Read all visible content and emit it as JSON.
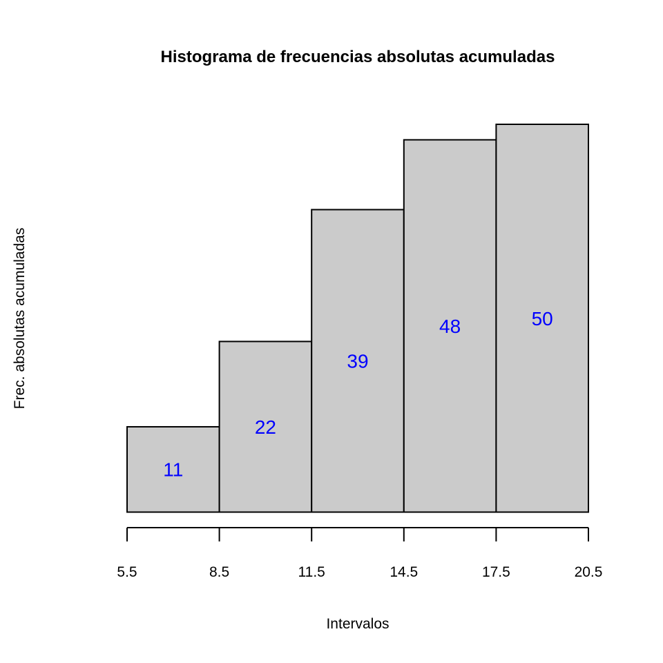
{
  "chart_data": {
    "type": "bar",
    "title": "Histograma de frecuencias absolutas acumuladas",
    "xlabel": "Intervalos",
    "ylabel": "Frec. absolutas acumuladas",
    "breaks": [
      5.5,
      8.5,
      11.5,
      14.5,
      17.5,
      20.5
    ],
    "tick_labels": [
      "5.5",
      "8.5",
      "11.5",
      "14.5",
      "17.5",
      "20.5"
    ],
    "categories": [
      "5.5-8.5",
      "8.5-11.5",
      "11.5-14.5",
      "14.5-17.5",
      "17.5-20.5"
    ],
    "values": [
      11,
      22,
      39,
      48,
      50
    ],
    "data_labels": [
      "11",
      "22",
      "39",
      "48",
      "50"
    ],
    "xlim": [
      5.5,
      20.5
    ],
    "ylim": [
      0,
      50
    ],
    "grid": false,
    "legend": "none",
    "bar_color": "#cbcbcb",
    "label_color": "#0000ff"
  }
}
